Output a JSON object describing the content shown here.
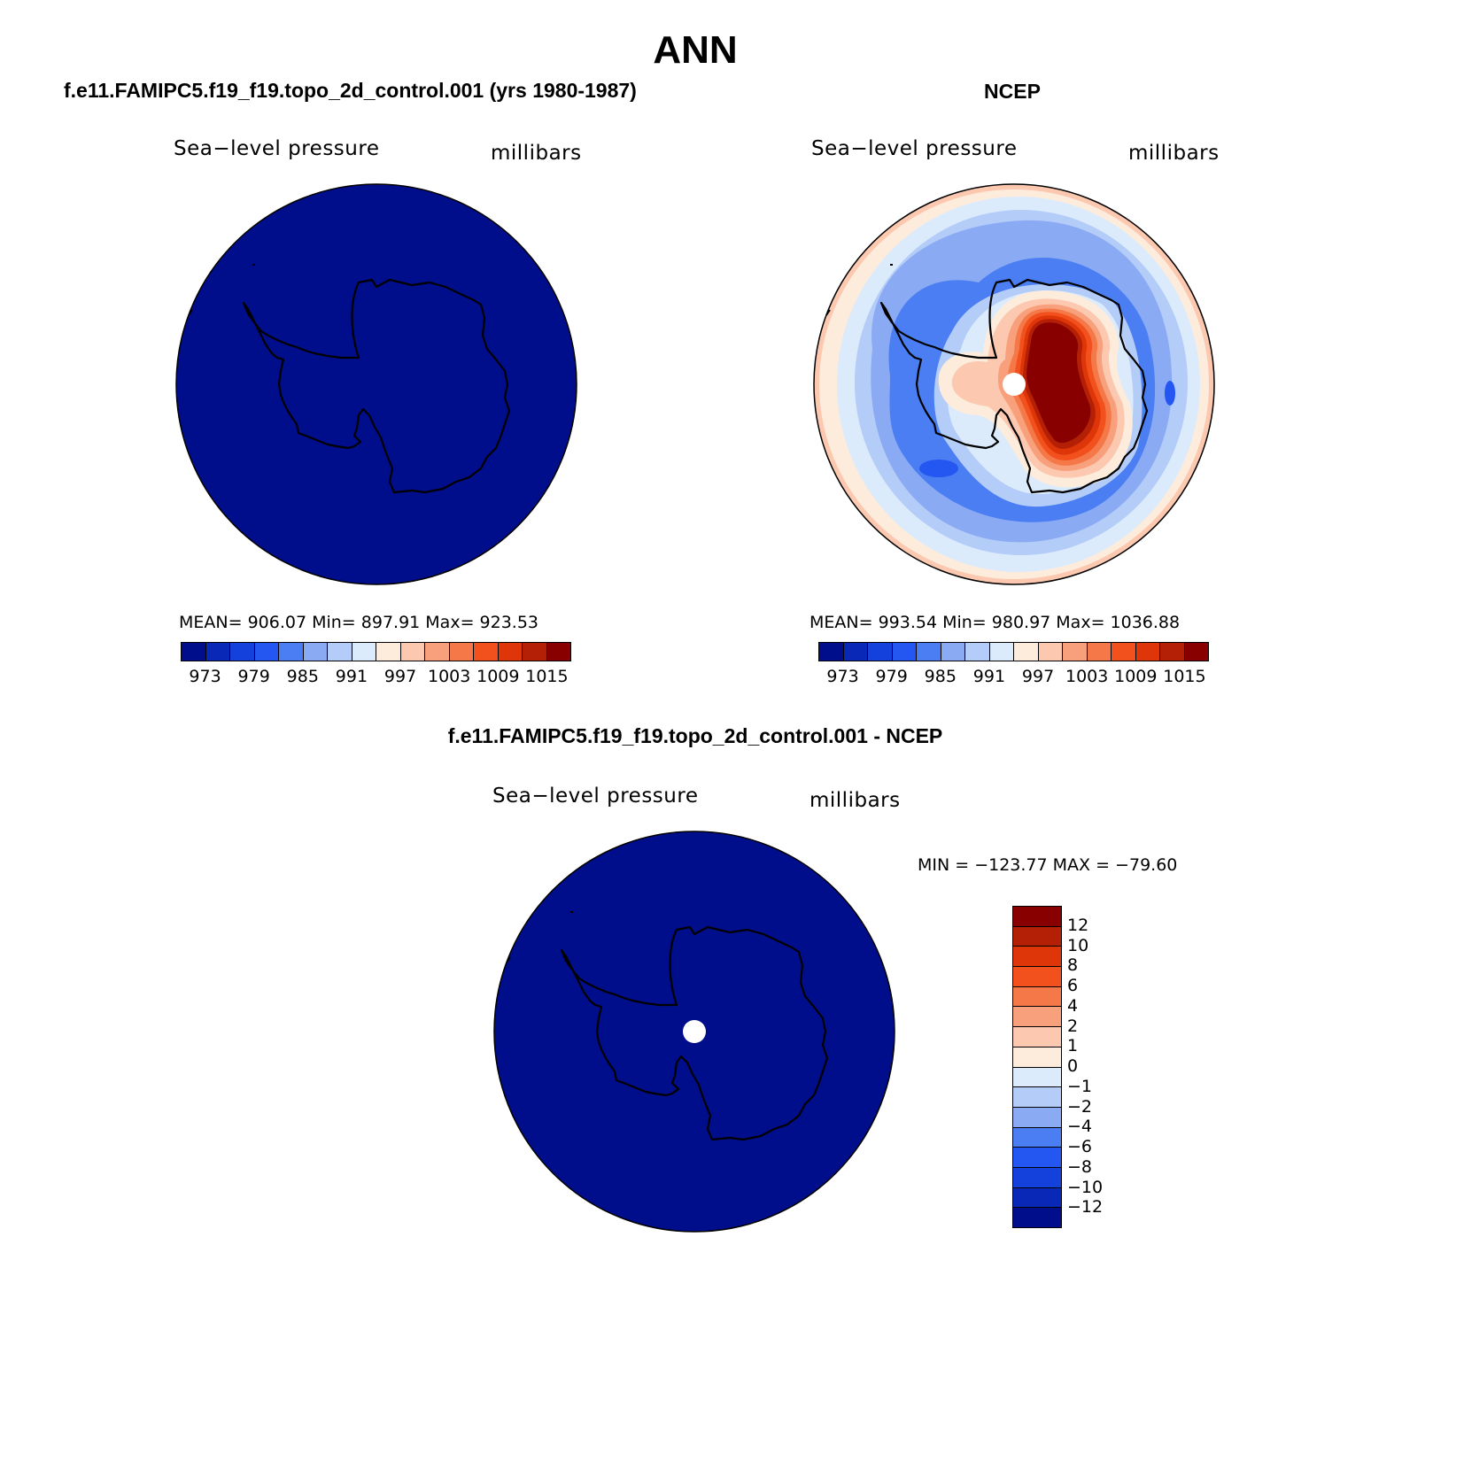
{
  "page": {
    "title": "ANN"
  },
  "panels": {
    "model": {
      "case_title": "f.e11.FAMIPC5.f19_f19.topo_2d_control.001 (yrs 1980-1987)",
      "variable": "Sea−level pressure",
      "units": "millibars",
      "stats": "MEAN=  906.07    Min=  897.91    Max=  923.53",
      "fill_color": "#000e8c"
    },
    "obs": {
      "case_title": "NCEP",
      "variable": "Sea−level pressure",
      "units": "millibars",
      "stats": "MEAN=  993.54    Min=  980.97    Max=  1036.88"
    },
    "diff": {
      "case_title": "f.e11.FAMIPC5.f19_f19.topo_2d_control.001 - NCEP",
      "variable": "Sea−level pressure",
      "units": "millibars",
      "minmax": "MIN = −123.77 MAX = −79.60",
      "fill_color": "#000e8c"
    }
  },
  "colorbars": {
    "abs": {
      "colors": [
        "#000e8c",
        "#0a28b8",
        "#1440dc",
        "#2456f2",
        "#4a7ef2",
        "#8aaaf4",
        "#b4ccf8",
        "#dcebfb",
        "#fdecdc",
        "#fcc8b0",
        "#f8a07c",
        "#f57848",
        "#f2501c",
        "#de3608",
        "#b42006",
        "#880000"
      ],
      "tick_labels": [
        "973",
        "979",
        "985",
        "991",
        "997",
        "1003",
        "1009",
        "1015"
      ]
    },
    "diff": {
      "colors_top_to_bottom": [
        "#880000",
        "#b42006",
        "#de3608",
        "#f2501c",
        "#f57848",
        "#f8a07c",
        "#fcc8b0",
        "#fdecdc",
        "#dcebfb",
        "#b4ccf8",
        "#8aaaf4",
        "#4a7ef2",
        "#2456f2",
        "#1440dc",
        "#0a28b8",
        "#000e8c"
      ],
      "tick_labels_top_to_bottom": [
        "12",
        "10",
        "8",
        "6",
        "4",
        "2",
        "1",
        "0",
        "−1",
        "−2",
        "−4",
        "−6",
        "−8",
        "−10",
        "−12"
      ]
    }
  }
}
